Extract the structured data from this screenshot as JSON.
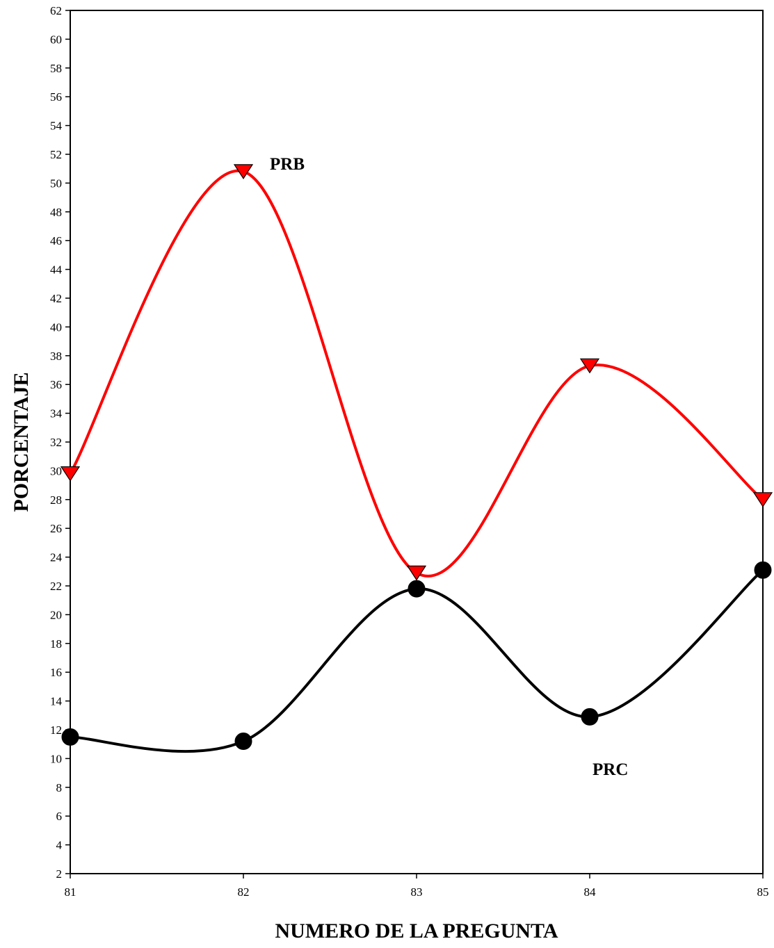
{
  "chart_data": {
    "type": "line",
    "xlabel": "NUMERO DE LA PREGUNTA",
    "ylabel": "PORCENTAJE",
    "x": [
      81,
      82,
      83,
      84,
      85
    ],
    "xlim": [
      81,
      85
    ],
    "ylim": [
      2,
      62
    ],
    "ytick_step": 2,
    "grid": false,
    "smooth": true,
    "series": [
      {
        "name": "PRB",
        "values": [
          29.8,
          50.8,
          22.9,
          37.3,
          28.0
        ],
        "color": "#ff0000",
        "marker": "triangle-down",
        "marker_color": "#ff0000"
      },
      {
        "name": "PRC",
        "values": [
          11.5,
          11.2,
          21.8,
          12.9,
          23.1
        ],
        "color": "#000000",
        "marker": "circle",
        "marker_color": "#000000"
      }
    ]
  }
}
